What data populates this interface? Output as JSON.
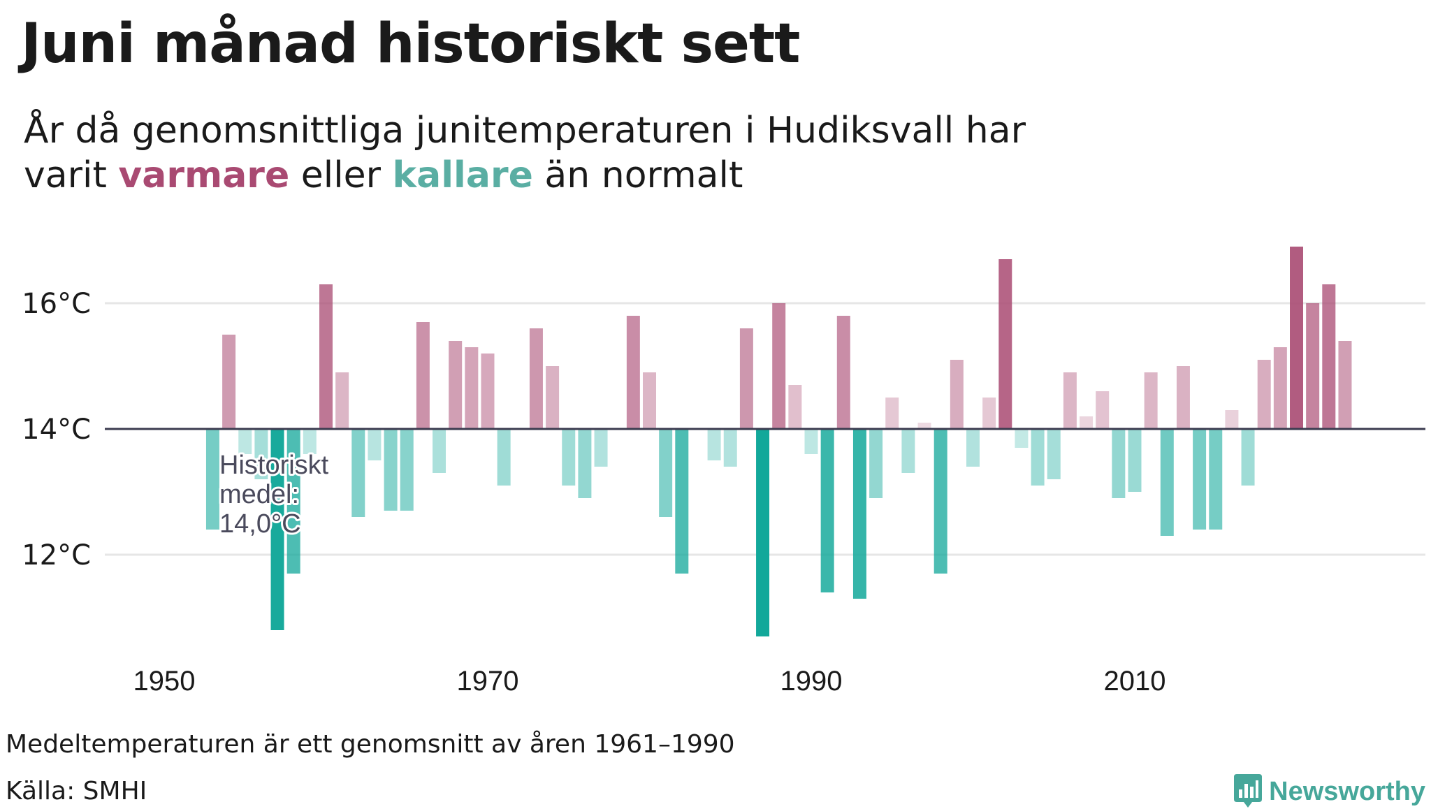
{
  "title": "Juni månad historiskt sett",
  "subtitle": {
    "line1": "År då genomsnittliga junitemperaturen i Hudiksvall har",
    "line2_pre": "varit ",
    "warm_word": "varmare",
    "mid": " eller ",
    "cold_word": "kallare",
    "line2_post": " än normalt"
  },
  "annotation": [
    "Historiskt",
    "medel:",
    "14,0°C"
  ],
  "footnote": "Medeltemperaturen är ett genomsnitt av åren 1961–1990",
  "source": "Källa: SMHI",
  "logo": {
    "text": "Newsworthy",
    "icon": "bar-chart-icon"
  },
  "colors": {
    "warm": "#a94a72",
    "cold": "#12a89a",
    "baseline": "#3b3b4f",
    "grid": "#e6e6e6"
  },
  "chart_data": {
    "type": "bar",
    "baseline": 14.0,
    "ylim": [
      10.6,
      17.2
    ],
    "yticks": [
      12,
      14,
      16
    ],
    "ytick_labels": [
      "12°C",
      "14°C",
      "16°C"
    ],
    "xlim": [
      1948,
      2027
    ],
    "xticks": [
      1950,
      1970,
      1990,
      2010
    ],
    "xtick_labels": [
      "1950",
      "1970",
      "1990",
      "2010"
    ],
    "grid": true,
    "x": [
      1953,
      1954,
      1955,
      1956,
      1957,
      1958,
      1959,
      1960,
      1961,
      1962,
      1963,
      1964,
      1965,
      1966,
      1967,
      1968,
      1969,
      1970,
      1971,
      1972,
      1973,
      1974,
      1975,
      1976,
      1977,
      1978,
      1979,
      1980,
      1981,
      1982,
      1983,
      1984,
      1985,
      1986,
      1987,
      1988,
      1989,
      1990,
      1991,
      1992,
      1993,
      1994,
      1995,
      1996,
      1997,
      1998,
      1999,
      2000,
      2001,
      2002,
      2003,
      2004,
      2005,
      2006,
      2007,
      2008,
      2009,
      2010,
      2011,
      2012,
      2013,
      2014,
      2015,
      2016,
      2017,
      2018,
      2019,
      2020,
      2021,
      2022,
      2023,
      2024
    ],
    "values": [
      12.4,
      15.5,
      13.6,
      13.2,
      10.8,
      11.7,
      13.6,
      16.3,
      14.9,
      12.6,
      13.5,
      12.7,
      12.7,
      15.7,
      13.3,
      15.4,
      15.3,
      15.2,
      13.1,
      14.0,
      15.6,
      15.0,
      13.1,
      12.9,
      13.4,
      14.0,
      15.8,
      14.9,
      12.6,
      11.7,
      14.0,
      13.5,
      13.4,
      15.6,
      10.7,
      16.0,
      14.7,
      13.6,
      11.4,
      15.8,
      11.3,
      12.9,
      14.5,
      13.3,
      14.1,
      11.7,
      15.1,
      13.4,
      14.5,
      16.7,
      13.7,
      13.1,
      13.2,
      14.9,
      14.2,
      14.6,
      12.9,
      13.0,
      14.9,
      12.3,
      15.0,
      12.4,
      12.4,
      14.3,
      13.1,
      15.1,
      15.3,
      16.9,
      16.0,
      16.3,
      15.4,
      14.0
    ]
  }
}
